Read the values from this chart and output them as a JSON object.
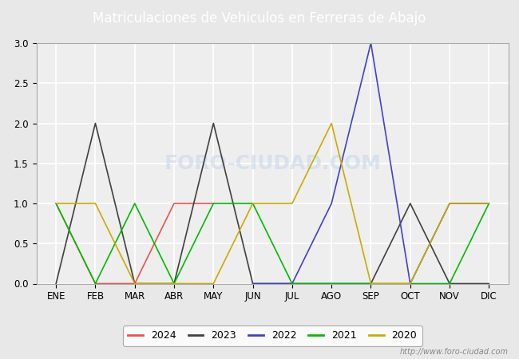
{
  "title": "Matriculaciones de Vehiculos en Ferreras de Abajo",
  "title_bg_color": "#5b9bd5",
  "title_text_color": "white",
  "months": [
    "ENE",
    "FEB",
    "MAR",
    "ABR",
    "MAY",
    "JUN",
    "JUL",
    "AGO",
    "SEP",
    "OCT",
    "NOV",
    "DIC"
  ],
  "series": [
    {
      "label": "2024",
      "color": "#e8534a",
      "data": [
        1,
        0,
        0,
        1,
        1,
        null,
        null,
        null,
        null,
        null,
        null,
        null
      ]
    },
    {
      "label": "2023",
      "color": "#404040",
      "data": [
        0,
        2,
        0,
        0,
        2,
        0,
        0,
        0,
        0,
        1,
        0,
        0
      ]
    },
    {
      "label": "2022",
      "color": "#4040cc",
      "data": [
        null,
        null,
        null,
        null,
        null,
        0,
        0,
        1,
        3,
        0,
        1,
        1
      ]
    },
    {
      "label": "2021",
      "color": "#00bb00",
      "data": [
        1,
        0,
        1,
        0,
        1,
        1,
        0,
        0,
        0,
        0,
        0,
        1
      ]
    },
    {
      "label": "2020",
      "color": "#ccaa00",
      "data": [
        1,
        1,
        0,
        0,
        0,
        1,
        1,
        2,
        0,
        0,
        1,
        1
      ]
    }
  ],
  "ylim": [
    0,
    3.0
  ],
  "yticks": [
    0.0,
    0.5,
    1.0,
    1.5,
    2.0,
    2.5,
    3.0
  ],
  "bg_color": "#e8e8e8",
  "plot_bg_color": "#eeeeee",
  "grid_color": "white",
  "watermark_text": "FORO-CIUDAD.COM",
  "watermark_url": "http://www.foro-ciudad.com"
}
